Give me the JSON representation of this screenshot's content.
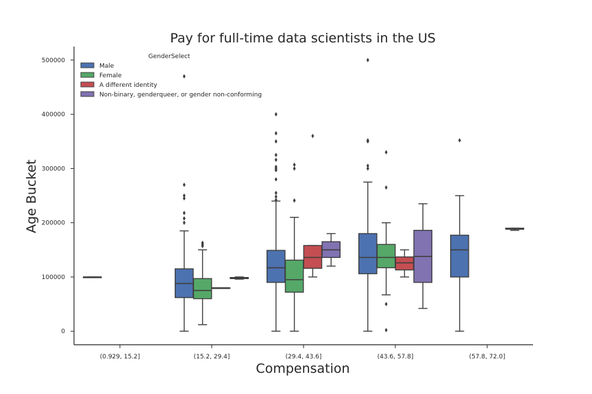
{
  "chart_data": {
    "type": "box",
    "title": "Pay for full-time data scientists in the US",
    "xlabel": "Compensation",
    "ylabel": "Age Bucket",
    "ylim": [
      -25000,
      525000
    ],
    "yticks": [
      0,
      100000,
      200000,
      300000,
      400000,
      500000
    ],
    "ytick_labels": [
      "0",
      "100000",
      "200000",
      "300000",
      "400000",
      "500000"
    ],
    "categories": [
      "(0.929, 15.2]",
      "(15.2, 29.4]",
      "(29.4, 43.6]",
      "(43.6, 57.8]",
      "(57.8, 72.0]"
    ],
    "legend": {
      "title": "GenderSelect",
      "placement": "top-left"
    },
    "series": [
      {
        "name": "Male",
        "color": "#4c72b0",
        "boxes": [
          {
            "category": 0,
            "min": 100000,
            "q1": 100000,
            "median": 100000,
            "q3": 100000,
            "max": 100000,
            "outliers": []
          },
          {
            "category": 1,
            "min": 0,
            "q1": 62000,
            "median": 88000,
            "q3": 115000,
            "max": 185000,
            "outliers": [
              200000,
              208000,
              218000,
              245000,
              250000,
              270000,
              470000
            ]
          },
          {
            "category": 2,
            "min": 0,
            "q1": 90000,
            "median": 117000,
            "q3": 149000,
            "max": 240000,
            "outliers": [
              242000,
              248000,
              255000,
              280000,
              297000,
              300000,
              303000,
              316000,
              325000,
              350000,
              365000,
              400000
            ]
          },
          {
            "category": 3,
            "min": 0,
            "q1": 106000,
            "median": 136000,
            "q3": 180000,
            "max": 275000,
            "outliers": [
              300000,
              305000,
              350000,
              352000,
              500000
            ]
          },
          {
            "category": 4,
            "min": 0,
            "q1": 100000,
            "median": 150000,
            "q3": 177000,
            "max": 250000,
            "outliers": [
              352000
            ]
          }
        ]
      },
      {
        "name": "Female",
        "color": "#55a868",
        "boxes": [
          {
            "category": 1,
            "min": 12000,
            "q1": 60000,
            "median": 75000,
            "q3": 97000,
            "max": 150000,
            "outliers": [
              157000,
              160000,
              163000
            ]
          },
          {
            "category": 2,
            "min": 0,
            "q1": 72000,
            "median": 95000,
            "q3": 131000,
            "max": 210000,
            "outliers": [
              241000,
              300000,
              307000
            ]
          },
          {
            "category": 3,
            "min": 67000,
            "q1": 117000,
            "median": 136000,
            "q3": 160000,
            "max": 200000,
            "outliers": [
              2000,
              50000,
              265000,
              330000
            ]
          }
        ]
      },
      {
        "name": "A different identity",
        "color": "#c44e52",
        "boxes": [
          {
            "category": 1,
            "min": 80000,
            "q1": 80000,
            "median": 80000,
            "q3": 80000,
            "max": 80000,
            "outliers": []
          },
          {
            "category": 2,
            "min": 100000,
            "q1": 116000,
            "median": 136000,
            "q3": 158000,
            "max": 158000,
            "outliers": [
              360000
            ]
          },
          {
            "category": 3,
            "min": 100000,
            "q1": 113000,
            "median": 126000,
            "q3": 137000,
            "max": 150000,
            "outliers": []
          }
        ]
      },
      {
        "name": "Non-binary, genderqueer, or gender non-conforming",
        "color": "#8172b2",
        "boxes": [
          {
            "category": 1,
            "min": 96000,
            "q1": 97000,
            "median": 98000,
            "q3": 99000,
            "max": 100000,
            "outliers": []
          },
          {
            "category": 2,
            "min": 120000,
            "q1": 136000,
            "median": 150000,
            "q3": 165000,
            "max": 180000,
            "outliers": []
          },
          {
            "category": 3,
            "min": 42000,
            "q1": 90000,
            "median": 138000,
            "q3": 186000,
            "max": 235000,
            "outliers": []
          },
          {
            "category": 4,
            "min": 186000,
            "q1": 188000,
            "median": 189000,
            "q3": 190000,
            "max": 190000,
            "outliers": []
          }
        ]
      }
    ]
  }
}
